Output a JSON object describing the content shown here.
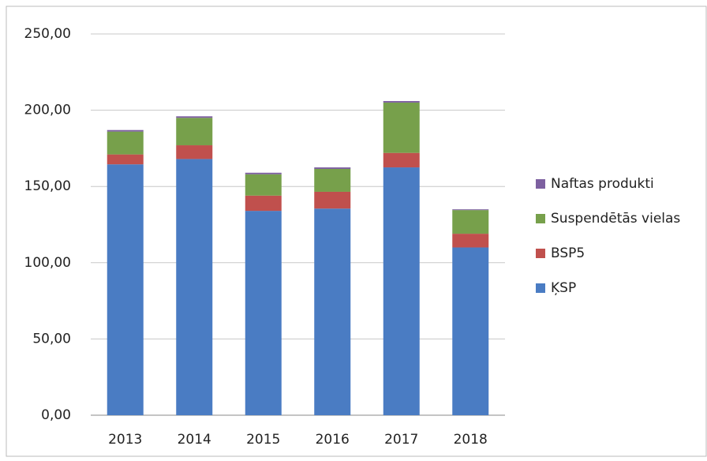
{
  "chart_data": {
    "type": "stacked_bar",
    "categories": [
      "2013",
      "2014",
      "2015",
      "2016",
      "2017",
      "2018"
    ],
    "series": [
      {
        "name": "ĶSP",
        "color": "#4a7cc3",
        "values": [
          164.5,
          168,
          134,
          135.5,
          162.5,
          110
        ]
      },
      {
        "name": "BSP5",
        "color": "#c0504d",
        "values": [
          6.5,
          9,
          10,
          11,
          9.5,
          9
        ]
      },
      {
        "name": "Suspendētās vielas",
        "color": "#77a04b",
        "values": [
          15,
          18,
          14,
          15,
          33,
          15.5
        ]
      },
      {
        "name": "Naftas produkti",
        "color": "#7d60a0",
        "values": [
          1,
          1,
          1,
          1,
          1,
          0.5
        ]
      }
    ],
    "ylim": [
      0,
      250
    ],
    "yticks": [
      {
        "value": 0,
        "label": "0,00"
      },
      {
        "value": 50,
        "label": "50,00"
      },
      {
        "value": 100,
        "label": "100,00"
      },
      {
        "value": 150,
        "label": "150,00"
      },
      {
        "value": 200,
        "label": "200,00"
      },
      {
        "value": 250,
        "label": "250,00"
      }
    ],
    "grid": true,
    "legend": "right"
  }
}
